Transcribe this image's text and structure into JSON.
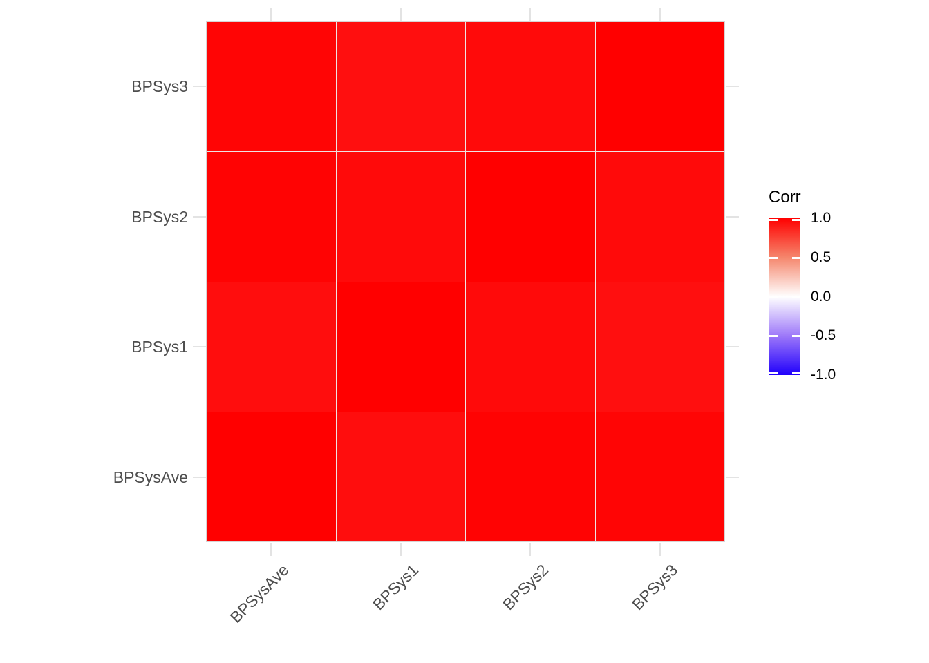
{
  "chart_data": {
    "type": "heatmap",
    "title": "",
    "variables": [
      "BPSysAve",
      "BPSys1",
      "BPSys2",
      "BPSys3"
    ],
    "x_tick_labels": [
      "BPSysAve",
      "BPSys1",
      "BPSys2",
      "BPSys3"
    ],
    "y_tick_labels_bottom_to_top": [
      "BPSysAve",
      "BPSys1",
      "BPSys2",
      "BPSys3"
    ],
    "matrix_rows_follow_variables_order": true,
    "matrix": [
      [
        1.0,
        0.95,
        0.99,
        0.98
      ],
      [
        0.95,
        1.0,
        0.96,
        0.94
      ],
      [
        0.99,
        0.96,
        1.0,
        0.96
      ],
      [
        0.98,
        0.94,
        0.96,
        1.0
      ]
    ],
    "value_range": [
      -1,
      1
    ],
    "grid": "stub ticks outside panel, minimal theme",
    "legend": {
      "title": "Corr",
      "position": "right",
      "orientation": "vertical",
      "tick_labels": [
        "1.0",
        "0.5",
        "0.0",
        "-0.5",
        "-1.0"
      ],
      "tick_values": [
        1.0,
        0.5,
        0.0,
        -0.5,
        -1.0
      ],
      "high_color": "#FF0000",
      "mid_color": "#FFFFFF",
      "low_color": "#0000FF"
    },
    "colors": {
      "axis_text": "#4d4d4d",
      "legend_text": "#000000",
      "grid_stub": "#e3e3e3",
      "background": "#ffffff"
    }
  }
}
